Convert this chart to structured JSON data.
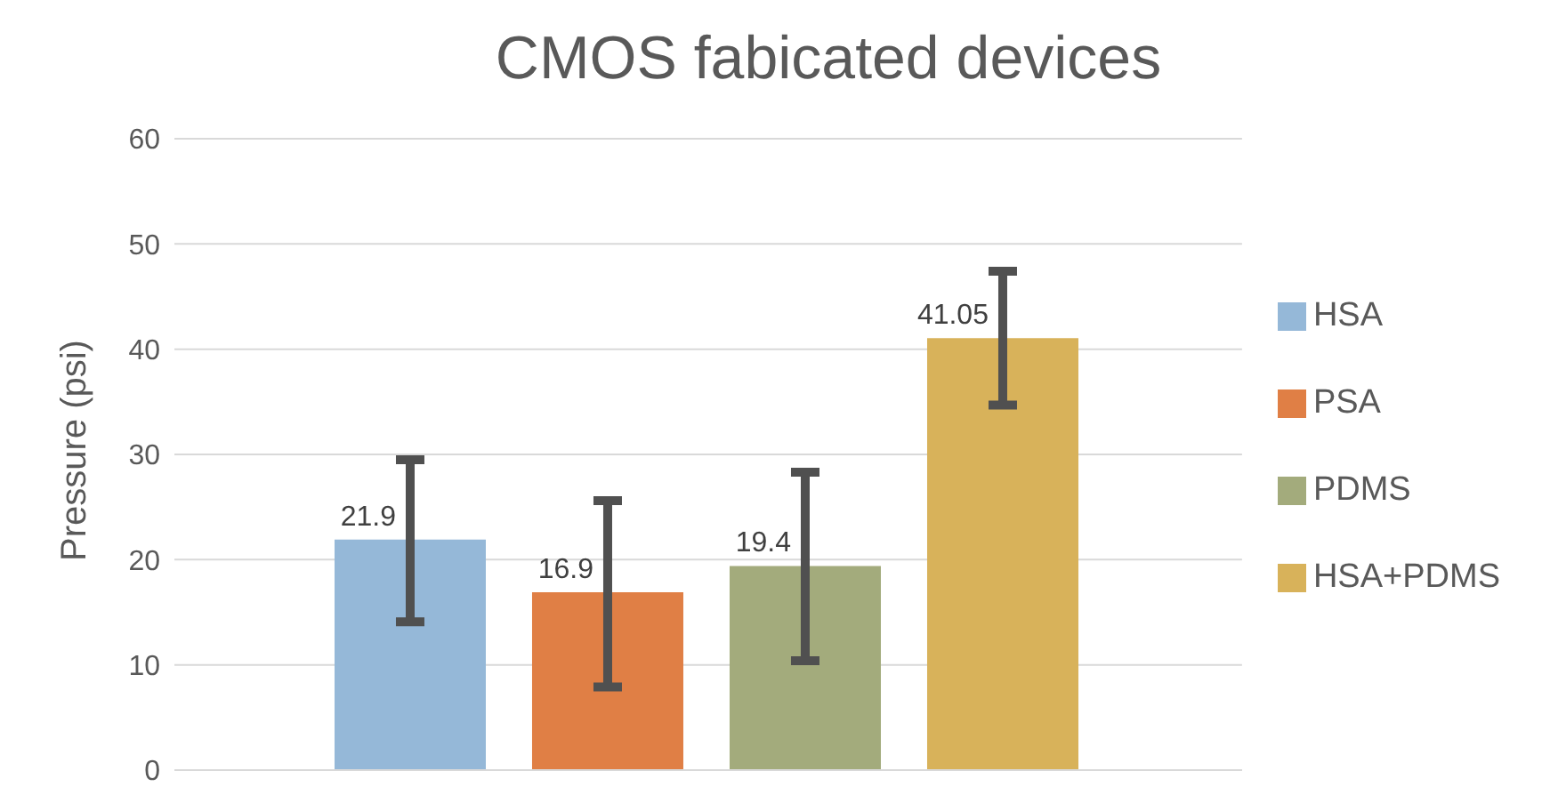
{
  "chart_data": {
    "type": "bar",
    "title": "CMOS fabicated devices",
    "ylabel": "Pressure (psi)",
    "categories": [
      null
    ],
    "series": [
      {
        "name": "HSA",
        "color": "#95b8d8",
        "values": [
          21.9
        ],
        "errors": [
          [
            14.1,
            29.5
          ]
        ]
      },
      {
        "name": "PSA",
        "color": "#e07f45",
        "values": [
          16.9
        ],
        "errors": [
          [
            7.9,
            25.6
          ]
        ]
      },
      {
        "name": "PDMS",
        "color": "#a3ab7c",
        "values": [
          19.4
        ],
        "errors": [
          [
            10.4,
            28.3
          ]
        ]
      },
      {
        "name": "HSA+PDMS",
        "color": "#d8b25a",
        "values": [
          41.05
        ],
        "errors": [
          [
            34.7,
            47.4
          ]
        ]
      }
    ],
    "ylim": [
      0,
      60
    ],
    "yticks": [
      0,
      10,
      20,
      30,
      40,
      50,
      60
    ],
    "grid": "y",
    "legend": "right",
    "data_labels": true
  }
}
